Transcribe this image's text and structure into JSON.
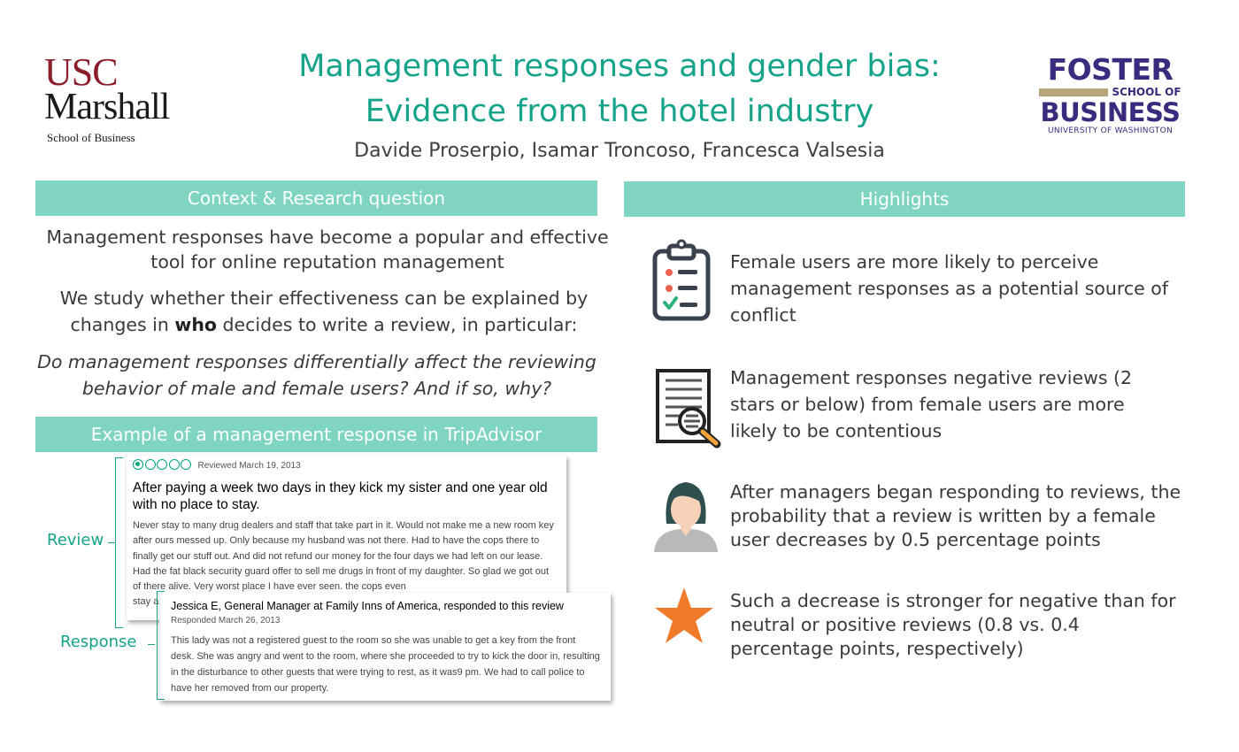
{
  "header": {
    "title_line1": "Management responses and gender bias:",
    "title_line2": "Evidence from the hotel industry",
    "authors": "Davide Proserpio, Isamar Troncoso, Francesca Valsesia"
  },
  "logos": {
    "usc": {
      "line1": "USC",
      "line2": "Marshall",
      "line3": "School of Business"
    },
    "foster": {
      "line1": "FOSTER",
      "line2": "SCHOOL OF",
      "line3": "BUSINESS",
      "line4": "UNIVERSITY OF WASHINGTON"
    }
  },
  "context": {
    "header": "Context & Research question",
    "para1": "Management responses have become a popular and effective tool for online reputation management",
    "para2_before": "We study whether their effectiveness can be explained by changes in ",
    "para2_bold": "who",
    "para2_after": " decides to write a review, in particular:",
    "question": "Do management responses differentially affect the reviewing behavior of male and female users? And if so, why?"
  },
  "example": {
    "header": "Example of a management response in TripAdvisor",
    "review_label": "Review",
    "response_label": "Response",
    "review": {
      "rating": 1,
      "rating_max": 5,
      "date": "Reviewed March 19, 2013",
      "title": "After paying a week two days in they kick my sister and one year old with no place to stay.",
      "body": "Never stay to many drug dealers and staff that take part in it. Would not make me a new room key after ours messed up. Only because my husband was not there. Had to have the cops there to finally get our stuff out. And did not refund our money for the four days we had left on our lease. Had the fat black security guard offer to sell me drugs in front of my daughter. So glad we got out of there alive. Very worst place I have ever seen. the cops even",
      "body_tail": "stay a"
    },
    "response": {
      "head": "Jessica E, General Manager at Family Inns of America, responded to this review",
      "date": "Responded March 26, 2013",
      "body": "This lady was not a registered guest to the room so she was unable to get a key from the front desk. She was angry and went to the room, where she proceeded to try to kick the door in, resulting in the disturbance to other guests that were trying to rest, as it was9 pm. We had to call police to have her removed from our property."
    }
  },
  "highlights": {
    "header": "Highlights",
    "items": [
      {
        "icon": "clipboard-checklist-icon",
        "text": "Female users are more likely to perceive management responses as a potential source of conflict"
      },
      {
        "icon": "document-magnifier-icon",
        "text": "Management responses negative reviews (2 stars or below) from female users are more likely to be contentious"
      },
      {
        "icon": "female-user-icon",
        "text": "After managers began responding to reviews, the probability that a review is written by a female user decreases by 0.5 percentage points"
      },
      {
        "icon": "star-icon",
        "text": "Such a decrease is stronger for negative than for neutral or positive reviews (0.8 vs. 0.4 percentage points, respectively)"
      }
    ]
  },
  "colors": {
    "accent": "#15a389",
    "header_bg": "#7fd5c1",
    "usc_red": "#8b1e2a",
    "foster_purple": "#3b2a7d",
    "foster_gold": "#b7a57a",
    "star_orange": "#f07c2b"
  }
}
